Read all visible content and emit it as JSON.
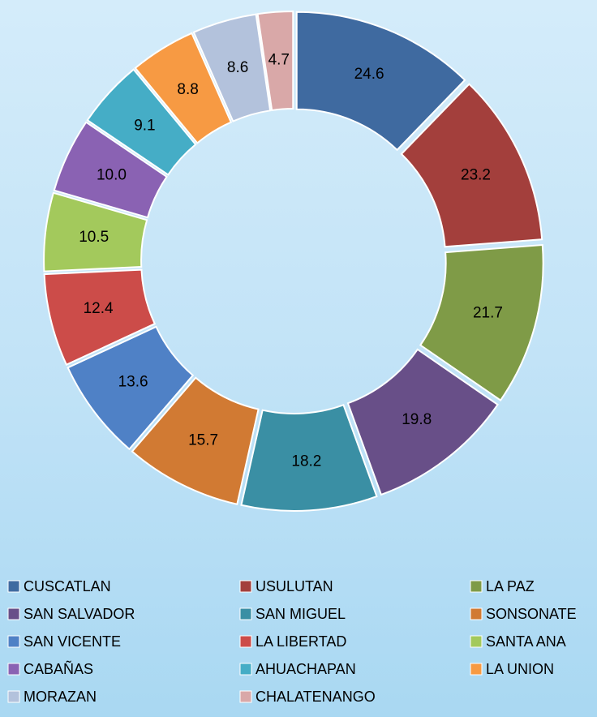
{
  "chart_data": {
    "type": "pie",
    "categories": [
      "CUSCATLAN",
      "USULUTAN",
      "LA PAZ",
      "SAN SALVADOR",
      "SAN MIGUEL",
      "SONSONATE",
      "SAN VICENTE",
      "LA LIBERTAD",
      "SANTA ANA",
      "CABAÑAS",
      "AHUACHAPAN",
      "LA UNION",
      "MORAZAN",
      "CHALATENANGO"
    ],
    "values": [
      24.6,
      23.2,
      21.7,
      19.8,
      18.2,
      15.7,
      13.6,
      12.4,
      10.5,
      10.0,
      9.1,
      8.8,
      8.6,
      4.7
    ],
    "value_labels": [
      "24.6",
      "23.2",
      "21.7",
      "19.8",
      "18.2",
      "15.7",
      "13.6",
      "12.4",
      "10.5",
      "10.0",
      "9.1",
      "8.8",
      "8.6",
      "4.7"
    ],
    "colors": [
      "#3f6aa0",
      "#a33f3c",
      "#7f9b47",
      "#684f88",
      "#3a8fa4",
      "#d17a33",
      "#4f81c6",
      "#cc4c49",
      "#a3c95c",
      "#8a62b3",
      "#45adc6",
      "#f79a43",
      "#b3c2dc",
      "#d9a8a8"
    ],
    "donut": true,
    "legend": "bottom"
  }
}
